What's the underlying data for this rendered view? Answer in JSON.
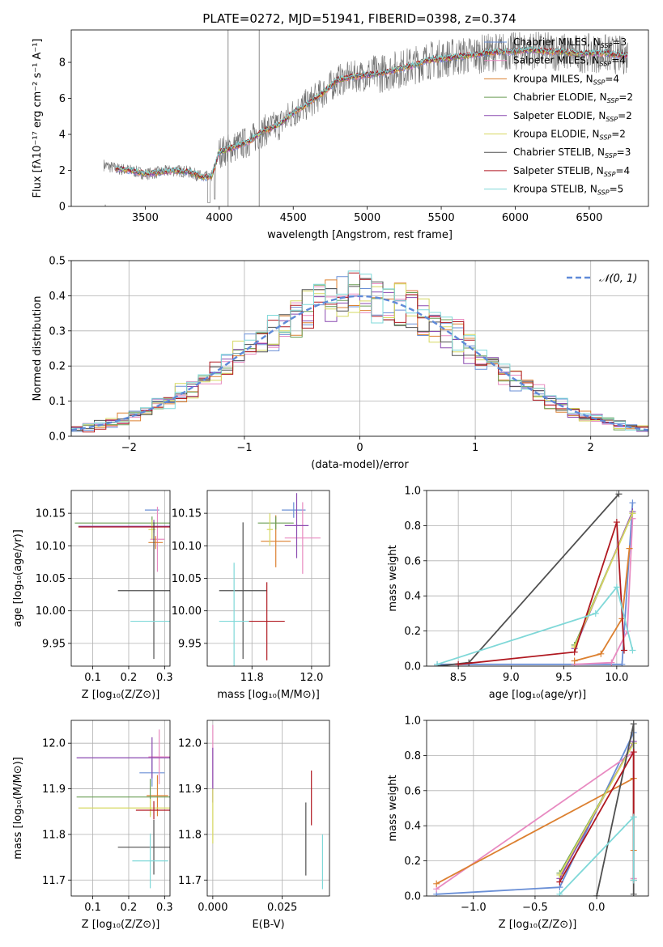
{
  "page": {
    "title": "PLATE=0272, MJD=51941, FIBERID=0398, z=0.374"
  },
  "colors": {
    "Chabrier MILES": "#6a8fd6",
    "Salpeter MILES": "#e88ac1",
    "Kroupa MILES": "#dc8030",
    "Chabrier ELODIE": "#6a9e55",
    "Salpeter ELODIE": "#8a4ab0",
    "Kroupa ELODIE": "#d6d860",
    "Chabrier STELIB": "#505050",
    "Salpeter STELIB": "#b01820",
    "Kroupa STELIB": "#7fd8d8",
    "normal": "#5f8ad8",
    "data": "#707070"
  },
  "chart_data": [
    {
      "type": "line",
      "title": "PLATE=0272, MJD=51941, FIBERID=0398, z=0.374",
      "xlabel": "wavelength [Angstrom, rest frame]",
      "ylabel": "Flux [fλ10⁻¹⁷ erg cm⁻² s⁻¹ A⁻¹]",
      "xlim": [
        3000,
        6900
      ],
      "ylim": [
        0,
        9.8
      ],
      "xticks": [
        "3500",
        "4000",
        "4500",
        "5000",
        "5500",
        "6000",
        "6500"
      ],
      "yticks": [
        "0",
        "2",
        "4",
        "6",
        "8"
      ],
      "legend": [
        {
          "model": "Chabrier MILES",
          "text": "Chabrier MILES, N",
          "n": "3"
        },
        {
          "model": "Salpeter MILES",
          "text": "Salpeter MILES, N",
          "n": "4"
        },
        {
          "model": "Kroupa MILES",
          "text": "Kroupa MILES, N",
          "n": "4"
        },
        {
          "model": "Chabrier ELODIE",
          "text": "Chabrier ELODIE, N",
          "n": "2"
        },
        {
          "model": "Salpeter ELODIE",
          "text": "Salpeter ELODIE, N",
          "n": "2"
        },
        {
          "model": "Kroupa ELODIE",
          "text": "Kroupa ELODIE, N",
          "n": "2"
        },
        {
          "model": "Chabrier STELIB",
          "text": "Chabrier STELIB, N",
          "n": "3"
        },
        {
          "model": "Salpeter STELIB",
          "text": "Salpeter STELIB, N",
          "n": "4"
        },
        {
          "model": "Kroupa STELIB",
          "text": "Kroupa STELIB, N",
          "n": "5"
        }
      ],
      "legend_sub": "SSP",
      "legend_position": "upper right",
      "continuum": {
        "x": [
          3220,
          3300,
          3400,
          3500,
          3600,
          3700,
          3800,
          3900,
          3950,
          4000,
          4100,
          4200,
          4300,
          4400,
          4500,
          4600,
          4700,
          4800,
          4900,
          5000,
          5100,
          5200,
          5300,
          5400,
          5500,
          5600,
          5700,
          5800,
          5900,
          6000,
          6100,
          6200,
          6300,
          6400,
          6500,
          6600,
          6700,
          6750
        ],
        "y": [
          2.3,
          2.1,
          2.0,
          1.8,
          1.9,
          2.0,
          1.9,
          1.6,
          1.7,
          3.0,
          3.3,
          3.6,
          4.2,
          4.5,
          5.2,
          5.7,
          6.3,
          7.0,
          7.2,
          7.3,
          7.4,
          7.6,
          7.8,
          8.1,
          8.2,
          8.3,
          8.4,
          8.5,
          8.6,
          8.6,
          8.7,
          8.6,
          8.6,
          8.5,
          8.5,
          8.5,
          8.4,
          8.4
        ]
      },
      "spikes": [
        {
          "x": 4060,
          "y": 9.8
        },
        {
          "x": 4270,
          "y": 9.8
        },
        {
          "x": 3230,
          "y": 0.1
        }
      ]
    },
    {
      "type": "bar",
      "xlabel": "(data-model)/error",
      "ylabel": "Normed distribution",
      "xlim": [
        -2.5,
        2.5
      ],
      "ylim": [
        0,
        0.5
      ],
      "xticks": [
        "−2",
        "−1",
        "0",
        "1",
        "2"
      ],
      "yticks": [
        "0.0",
        "0.1",
        "0.2",
        "0.3",
        "0.4",
        "0.5"
      ],
      "legend": {
        "label": "𝒩(0, 1)",
        "position": "upper right"
      },
      "bin_width": 0.1
    },
    {
      "type": "scatter",
      "xlabel": "Z [log₁₀(Z/Z⊙)]",
      "ylabel": "age  [log₁₀(age/yr)]",
      "xlim": [
        0.04,
        0.315
      ],
      "ylim": [
        9.915,
        10.185
      ],
      "xticks": [
        "0.1",
        "0.2",
        "0.3"
      ],
      "yticks": [
        "9.95",
        "10.00",
        "10.05",
        "10.10",
        "10.15"
      ],
      "points": [
        {
          "model": "Chabrier MILES",
          "x": 0.265,
          "y": 10.155,
          "xerr": 0.02,
          "yerr": 0.0
        },
        {
          "model": "Salpeter MILES",
          "x": 0.28,
          "y": 10.11,
          "xerr": 0.02,
          "yerr": 0.05
        },
        {
          "model": "Kroupa MILES",
          "x": 0.275,
          "y": 10.105,
          "xerr": 0.02,
          "yerr": 0.01
        },
        {
          "model": "Chabrier ELODIE",
          "x": 0.265,
          "y": 10.135,
          "xerr": 0.215,
          "yerr": 0.01
        },
        {
          "model": "Salpeter ELODIE",
          "x": 0.27,
          "y": 10.13,
          "xerr": 0.21,
          "yerr": 0.01
        },
        {
          "model": "Kroupa ELODIE",
          "x": 0.265,
          "y": 10.125,
          "xerr": 0.01,
          "yerr": 0.015
        },
        {
          "model": "Chabrier STELIB",
          "x": 0.27,
          "y": 10.031,
          "xerr": 0.1,
          "yerr": 0.105
        },
        {
          "model": "Salpeter STELIB",
          "x": 0.27,
          "y": 10.129,
          "xerr": 0.21,
          "yerr": 0.0
        },
        {
          "model": "Kroupa STELIB",
          "x": 0.265,
          "y": 9.984,
          "xerr": 0.06,
          "yerr": 0.0
        }
      ]
    },
    {
      "type": "scatter",
      "xlabel": "mass [log₁₀(M/M⊙)]",
      "xlim": [
        11.65,
        12.06
      ],
      "ylim": [
        9.915,
        10.185
      ],
      "xticks": [
        "11.8",
        "12.0"
      ],
      "yticks": [
        "9.95",
        "10.00",
        "10.05",
        "10.10",
        "10.15"
      ],
      "points": [
        {
          "model": "Chabrier MILES",
          "x": 11.94,
          "y": 10.155,
          "xerr": 0.04,
          "yerr": 0.012
        },
        {
          "model": "Salpeter MILES",
          "x": 11.97,
          "y": 10.112,
          "xerr": 0.06,
          "yerr": 0.055
        },
        {
          "model": "Kroupa MILES",
          "x": 11.88,
          "y": 10.107,
          "xerr": 0.05,
          "yerr": 0.04
        },
        {
          "model": "Chabrier ELODIE",
          "x": 11.88,
          "y": 10.135,
          "xerr": 0.06,
          "yerr": 0.01
        },
        {
          "model": "Salpeter ELODIE",
          "x": 11.95,
          "y": 10.131,
          "xerr": 0.04,
          "yerr": 0.05
        },
        {
          "model": "Kroupa ELODIE",
          "x": 11.86,
          "y": 10.125,
          "xerr": 0.01,
          "yerr": 0.025
        },
        {
          "model": "Chabrier STELIB",
          "x": 11.77,
          "y": 10.031,
          "xerr": 0.08,
          "yerr": 0.105
        },
        {
          "model": "Salpeter STELIB",
          "x": 11.85,
          "y": 9.984,
          "xerr": 0.06,
          "yerr": 0.06
        },
        {
          "model": "Kroupa STELIB",
          "x": 11.74,
          "y": 9.984,
          "xerr": 0.05,
          "yerr": 0.09
        }
      ]
    },
    {
      "type": "line",
      "xlabel": "age  [log₁₀(age/yr)]",
      "ylabel": "mass weight",
      "xlim": [
        8.2,
        10.3
      ],
      "ylim": [
        0,
        1.0
      ],
      "xticks": [
        "8.5",
        "9.0",
        "9.5",
        "10.0"
      ],
      "yticks": [
        "0.0",
        "0.2",
        "0.4",
        "0.6",
        "0.8",
        "1.0"
      ],
      "series": [
        {
          "model": "Chabrier MILES",
          "x": [
            8.3,
            10.05,
            10.15
          ],
          "y": [
            0.01,
            0.01,
            0.93
          ]
        },
        {
          "model": "Salpeter MILES",
          "x": [
            9.6,
            9.95,
            10.1,
            10.15
          ],
          "y": [
            0.01,
            0.02,
            0.2,
            0.84
          ]
        },
        {
          "model": "Kroupa MILES",
          "x": [
            9.6,
            9.85,
            10.05,
            10.12
          ],
          "y": [
            0.03,
            0.07,
            0.27,
            0.67
          ]
        },
        {
          "model": "Chabrier ELODIE",
          "x": [
            9.6,
            10.15
          ],
          "y": [
            0.12,
            0.87
          ]
        },
        {
          "model": "Salpeter ELODIE",
          "x": [
            9.6,
            10.15
          ],
          "y": [
            0.1,
            0.88
          ]
        },
        {
          "model": "Kroupa ELODIE",
          "x": [
            9.6,
            10.15
          ],
          "y": [
            0.11,
            0.87
          ]
        },
        {
          "model": "Chabrier STELIB",
          "x": [
            8.3,
            8.6,
            10.02
          ],
          "y": [
            0.0,
            0.02,
            0.98
          ]
        },
        {
          "model": "Salpeter STELIB",
          "x": [
            8.5,
            9.6,
            10.0,
            10.07
          ],
          "y": [
            0.01,
            0.08,
            0.82,
            0.09
          ]
        },
        {
          "model": "Kroupa STELIB",
          "x": [
            8.3,
            9.8,
            10.0,
            10.15
          ],
          "y": [
            0.01,
            0.3,
            0.45,
            0.09
          ]
        }
      ]
    },
    {
      "type": "scatter",
      "xlabel": "Z [log₁₀(Z/Z⊙)]",
      "ylabel": "mass [log₁₀(M/M⊙)]",
      "xlim": [
        0.04,
        0.315
      ],
      "ylim": [
        11.665,
        12.05
      ],
      "xticks": [
        "0.1",
        "0.2",
        "0.3"
      ],
      "yticks": [
        "11.7",
        "11.8",
        "11.9",
        "12.0"
      ],
      "points": [
        {
          "model": "Chabrier MILES",
          "x": 0.265,
          "y": 11.935,
          "xerr": 0.035,
          "yerr": 0.03
        },
        {
          "model": "Salpeter MILES",
          "x": 0.285,
          "y": 11.97,
          "xerr": 0.03,
          "yerr": 0.06
        },
        {
          "model": "Kroupa MILES",
          "x": 0.28,
          "y": 11.885,
          "xerr": 0.03,
          "yerr": 0.045
        },
        {
          "model": "Chabrier ELODIE",
          "x": 0.26,
          "y": 11.882,
          "xerr": 0.205,
          "yerr": 0.04
        },
        {
          "model": "Salpeter ELODIE",
          "x": 0.265,
          "y": 11.968,
          "xerr": 0.21,
          "yerr": 0.045
        },
        {
          "model": "Kroupa ELODIE",
          "x": 0.26,
          "y": 11.858,
          "xerr": 0.2,
          "yerr": 0.02
        },
        {
          "model": "Chabrier STELIB",
          "x": 0.27,
          "y": 11.772,
          "xerr": 0.1,
          "yerr": 0.06
        },
        {
          "model": "Salpeter STELIB",
          "x": 0.27,
          "y": 11.853,
          "xerr": 0.05,
          "yerr": 0.02
        },
        {
          "model": "Kroupa STELIB",
          "x": 0.26,
          "y": 11.742,
          "xerr": 0.05,
          "yerr": 0.06
        }
      ]
    },
    {
      "type": "scatter",
      "xlabel": "E(B-V)",
      "xlim": [
        -0.002,
        0.042
      ],
      "ylim": [
        11.665,
        12.05
      ],
      "xticks": [
        "0.000",
        "0.025"
      ],
      "yticks": [
        "11.7",
        "11.8",
        "11.9",
        "12.0"
      ],
      "points": [
        {
          "model": "Salpeter MILES",
          "x": 0.0,
          "y": 11.97,
          "xerr": 0.0,
          "yerr": 0.07
        },
        {
          "model": "Salpeter ELODIE",
          "x": 0.0,
          "y": 11.93,
          "xerr": 0.0,
          "yerr": 0.06
        },
        {
          "model": "Kroupa ELODIE",
          "x": 0.0,
          "y": 11.84,
          "xerr": 0.0,
          "yerr": 0.06
        },
        {
          "model": "Chabrier STELIB",
          "x": 0.0335,
          "y": 11.79,
          "xerr": 0.0,
          "yerr": 0.08
        },
        {
          "model": "Salpeter STELIB",
          "x": 0.0355,
          "y": 11.88,
          "xerr": 0.0,
          "yerr": 0.06
        },
        {
          "model": "Kroupa STELIB",
          "x": 0.0395,
          "y": 11.74,
          "xerr": 0.0,
          "yerr": 0.06
        }
      ]
    },
    {
      "type": "line",
      "xlabel": "Z [log₁₀(Z/Z⊙)]",
      "ylabel": "mass weight",
      "xlim": [
        -1.38,
        0.42
      ],
      "ylim": [
        0,
        1.0
      ],
      "xticks": [
        "−1.0",
        "−0.5",
        "0.0"
      ],
      "yticks": [
        "0.0",
        "0.2",
        "0.4",
        "0.6",
        "0.8",
        "1.0"
      ],
      "series": [
        {
          "model": "Chabrier MILES",
          "x": [
            -1.3,
            -0.3,
            0.3
          ],
          "y": [
            0.01,
            0.05,
            0.93
          ]
        },
        {
          "model": "Salpeter MILES",
          "x": [
            -1.3,
            0.3,
            0.3
          ],
          "y": [
            0.04,
            0.82,
            0.1
          ]
        },
        {
          "model": "Kroupa MILES",
          "x": [
            -1.3,
            0.3,
            0.3
          ],
          "y": [
            0.07,
            0.67,
            0.26
          ]
        },
        {
          "model": "Chabrier ELODIE",
          "x": [
            -0.3,
            0.3
          ],
          "y": [
            0.13,
            0.87
          ]
        },
        {
          "model": "Salpeter ELODIE",
          "x": [
            -0.3,
            0.3
          ],
          "y": [
            0.1,
            0.88
          ]
        },
        {
          "model": "Kroupa ELODIE",
          "x": [
            -0.3,
            0.3
          ],
          "y": [
            0.12,
            0.87
          ]
        },
        {
          "model": "Chabrier STELIB",
          "x": [
            0.0,
            0.3,
            0.3
          ],
          "y": [
            0.0,
            0.98,
            0.01
          ]
        },
        {
          "model": "Salpeter STELIB",
          "x": [
            -0.3,
            0.3,
            0.3
          ],
          "y": [
            0.08,
            0.82,
            0.09
          ]
        },
        {
          "model": "Kroupa STELIB",
          "x": [
            -0.3,
            0.3,
            0.3
          ],
          "y": [
            0.01,
            0.45,
            0.09
          ]
        }
      ]
    }
  ]
}
